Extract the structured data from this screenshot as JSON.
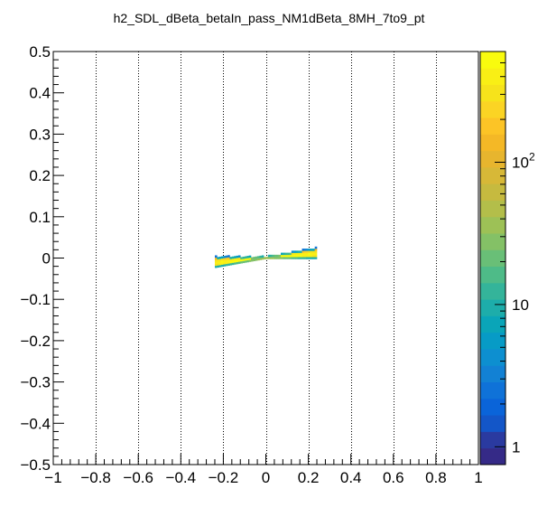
{
  "chart_data": {
    "type": "heatmap",
    "title": "h2_SDL_dBeta_betaIn_pass_NM1dBeta_8MH_7to9_pt",
    "xlabel": "",
    "ylabel": "",
    "xlim": [
      -1,
      1
    ],
    "ylim": [
      -0.5,
      0.5
    ],
    "x_ticks": [
      -1,
      -0.8,
      -0.6,
      -0.4,
      -0.2,
      0,
      0.2,
      0.4,
      0.6,
      0.8,
      1
    ],
    "x_tick_labels": [
      "−1",
      "−0.8",
      "−0.6",
      "−0.4",
      "−0.2",
      "0",
      "0.2",
      "0.4",
      "0.6",
      "0.8",
      "1"
    ],
    "y_ticks": [
      -0.5,
      -0.4,
      -0.3,
      -0.2,
      -0.1,
      0,
      0.1,
      0.2,
      0.3,
      0.4,
      0.5
    ],
    "y_tick_labels": [
      "−0.5",
      "−0.4",
      "−0.3",
      "−0.2",
      "−0.1",
      "0",
      "0.1",
      "0.2",
      "0.3",
      "0.4",
      "0.5"
    ],
    "grid_x": true,
    "grid_y": false,
    "colorbar": {
      "scale": "log",
      "zlim": [
        0.75,
        600
      ],
      "ticks": [
        {
          "value": 1,
          "base": "1",
          "exp": ""
        },
        {
          "value": 10,
          "base": "10",
          "exp": ""
        },
        {
          "value": 100,
          "base": "10",
          "exp": "2"
        }
      ],
      "palette": [
        "#352a87",
        "#2a3aa0",
        "#1356c8",
        "#0a64d9",
        "#0f72d8",
        "#1281d4",
        "#0d8fd0",
        "#079bc6",
        "#0aa5b8",
        "#1dadaa",
        "#34b49a",
        "#4ebb88",
        "#69bf77",
        "#84c166",
        "#9dc156",
        "#b3be4a",
        "#c6ba3f",
        "#d7b837",
        "#e7b52e",
        "#f4b826",
        "#fcc426",
        "#fbd424",
        "#f6e31b",
        "#f9ef15",
        "#f9fb0e"
      ]
    },
    "distribution": {
      "description_values": "narrow band of counts along the line y = 0.045*x, spanning x from -0.24 to 0.24",
      "x_range": [
        -0.24,
        0.24
      ],
      "slope": 0.045,
      "half_width_at_edges": 0.013,
      "half_width_at_center": 0.002,
      "peak_count": 600
    }
  }
}
